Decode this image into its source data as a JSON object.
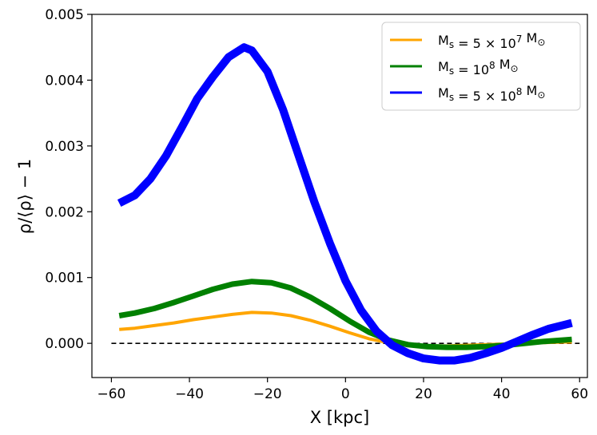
{
  "chart_data": {
    "type": "line",
    "title": "",
    "xlabel": "X [kpc]",
    "ylabel": "ρ/⟨ρ⟩ − 1",
    "xlim": [
      -65,
      62
    ],
    "ylim": [
      -0.00052,
      0.005
    ],
    "xticks": [
      -60,
      -40,
      -20,
      0,
      20,
      40,
      60
    ],
    "xtick_labels": [
      "−60",
      "−40",
      "−20",
      "0",
      "20",
      "40",
      "60"
    ],
    "yticks": [
      0.0,
      0.001,
      0.002,
      0.003,
      0.004,
      0.005
    ],
    "ytick_labels": [
      "0.000",
      "0.001",
      "0.002",
      "0.003",
      "0.004",
      "0.005"
    ],
    "grid": false,
    "legend_position": "top-right",
    "reference_line": {
      "y": 0,
      "x_range": [
        -60,
        60
      ],
      "style": "dashed",
      "color": "#000000"
    },
    "series": [
      {
        "name": "M_s = 5 × 10^7 M_⊙",
        "legend": {
          "base": "M",
          "sub": "s",
          "eq": " = 5 × 10",
          "sup": "7",
          "unit": " M",
          "unitsub": "⊙"
        },
        "color": "#FFA500",
        "line_width": 4,
        "x": [
          -58,
          -54,
          -49,
          -44,
          -39,
          -34,
          -29,
          -24,
          -19,
          -14,
          -9,
          -4,
          1,
          6,
          11,
          16,
          21,
          26,
          31,
          36,
          41,
          46,
          51,
          56,
          58
        ],
        "values": [
          0.00021,
          0.00023,
          0.00027,
          0.00031,
          0.00036,
          0.0004,
          0.00044,
          0.00047,
          0.00046,
          0.00042,
          0.00035,
          0.00026,
          0.00016,
          7e-05,
          1e-05,
          -3e-05,
          -4e-05,
          -4e-05,
          -3e-05,
          -2e-05,
          -1e-05,
          0.0,
          1e-05,
          2e-05,
          2e-05
        ]
      },
      {
        "name": "M_s = 10^8 M_⊙",
        "legend": {
          "base": "M",
          "sub": "s",
          "eq": " = 10",
          "sup": "8",
          "unit": " M",
          "unitsub": "⊙"
        },
        "color": "#008000",
        "line_width": 7,
        "x": [
          -58,
          -54,
          -49,
          -44,
          -39,
          -34,
          -29,
          -24,
          -19,
          -14,
          -9,
          -4,
          1,
          6,
          11,
          16,
          21,
          26,
          31,
          36,
          41,
          46,
          51,
          56,
          58
        ],
        "values": [
          0.00042,
          0.00046,
          0.00053,
          0.00062,
          0.00072,
          0.00082,
          0.0009,
          0.00094,
          0.00092,
          0.00084,
          0.0007,
          0.00053,
          0.00034,
          0.00017,
          5e-05,
          -2e-05,
          -5e-05,
          -6e-05,
          -6e-05,
          -5e-05,
          -3e-05,
          0.0,
          3e-05,
          5e-05,
          6e-05
        ]
      },
      {
        "name": "M_s = 5 × 10^8 M_⊙",
        "legend": {
          "base": "M",
          "sub": "s",
          "eq": " = 5 × 10",
          "sup": "8",
          "unit": " M",
          "unitsub": "⊙"
        },
        "color": "#0000FF",
        "line_width": 10,
        "x": [
          -58,
          -54,
          -50,
          -46,
          -42,
          -38,
          -34,
          -30,
          -26,
          -24,
          -20,
          -16,
          -12,
          -8,
          -4,
          0,
          4,
          8,
          12,
          16,
          20,
          24,
          28,
          32,
          36,
          40,
          44,
          48,
          52,
          56,
          58
        ],
        "values": [
          0.00213,
          0.00225,
          0.0025,
          0.00285,
          0.00328,
          0.00372,
          0.00405,
          0.00435,
          0.0045,
          0.00445,
          0.00413,
          0.00355,
          0.00285,
          0.00215,
          0.00152,
          0.00095,
          0.0005,
          0.00018,
          -3e-05,
          -0.00015,
          -0.00023,
          -0.00026,
          -0.00026,
          -0.00022,
          -0.00015,
          -7e-05,
          3e-05,
          0.00013,
          0.00022,
          0.00028,
          0.00031
        ]
      }
    ]
  }
}
